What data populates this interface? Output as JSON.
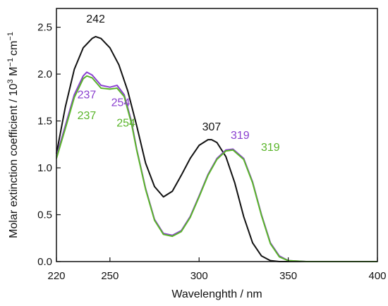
{
  "chart_data": {
    "type": "line",
    "title": "",
    "xlabel": "Wavelenghth / nm",
    "ylabel_parts": {
      "prefix": "Molar extinction coefficient / 10",
      "exp1": "3",
      "mid": " M",
      "exp2": "−1",
      "mid2": "cm",
      "exp3": "−1"
    },
    "xlim": [
      220,
      400
    ],
    "ylim": [
      0,
      2.7
    ],
    "x_ticks": [
      {
        "value": 220,
        "label": "220"
      },
      {
        "value": 250,
        "label": "250"
      },
      {
        "value": 300,
        "label": "300"
      },
      {
        "value": 350,
        "label": "350"
      },
      {
        "value": 400,
        "label": "400"
      }
    ],
    "y_ticks": [
      {
        "value": 0.0,
        "label": "0.0"
      },
      {
        "value": 0.5,
        "label": "0.5"
      },
      {
        "value": 1.0,
        "label": "1.0"
      },
      {
        "value": 1.5,
        "label": "1.5"
      },
      {
        "value": 2.0,
        "label": "2.0"
      },
      {
        "value": 2.5,
        "label": "2.5"
      }
    ],
    "grid": false,
    "legend": "none",
    "series": [
      {
        "color": "#111111",
        "x": [
          220,
          225,
          230,
          235,
          240,
          242,
          245,
          250,
          255,
          260,
          265,
          270,
          275,
          280,
          285,
          290,
          295,
          300,
          305,
          307,
          310,
          315,
          320,
          325,
          330,
          335,
          340,
          345,
          350,
          360,
          380,
          400
        ],
        "y": [
          1.15,
          1.65,
          2.05,
          2.28,
          2.38,
          2.4,
          2.38,
          2.28,
          2.1,
          1.82,
          1.45,
          1.05,
          0.8,
          0.69,
          0.75,
          0.92,
          1.1,
          1.24,
          1.3,
          1.3,
          1.27,
          1.12,
          0.84,
          0.48,
          0.2,
          0.06,
          0.01,
          0.0,
          0.0,
          0.0,
          0.0,
          0.0
        ]
      },
      {
        "color": "#8a3fcf",
        "x": [
          220,
          225,
          230,
          235,
          237,
          240,
          245,
          250,
          254,
          258,
          262,
          265,
          270,
          275,
          280,
          285,
          290,
          295,
          300,
          305,
          310,
          315,
          319,
          325,
          330,
          335,
          340,
          345,
          350,
          360,
          380,
          400
        ],
        "y": [
          1.12,
          1.45,
          1.78,
          1.98,
          2.02,
          1.99,
          1.88,
          1.86,
          1.88,
          1.78,
          1.5,
          1.2,
          0.78,
          0.45,
          0.3,
          0.28,
          0.33,
          0.48,
          0.7,
          0.93,
          1.1,
          1.19,
          1.2,
          1.1,
          0.85,
          0.5,
          0.2,
          0.06,
          0.01,
          0.0,
          0.0,
          0.0
        ]
      },
      {
        "color": "#5ab52a",
        "x": [
          220,
          225,
          230,
          235,
          237,
          240,
          245,
          250,
          254,
          258,
          262,
          265,
          270,
          275,
          280,
          285,
          290,
          295,
          300,
          305,
          310,
          315,
          319,
          325,
          330,
          335,
          340,
          345,
          350,
          360,
          380,
          400
        ],
        "y": [
          1.1,
          1.42,
          1.75,
          1.95,
          1.98,
          1.96,
          1.85,
          1.84,
          1.85,
          1.76,
          1.48,
          1.19,
          0.77,
          0.44,
          0.29,
          0.27,
          0.32,
          0.47,
          0.69,
          0.92,
          1.09,
          1.18,
          1.19,
          1.09,
          0.84,
          0.49,
          0.19,
          0.05,
          0.01,
          0.0,
          0.0,
          0.0
        ]
      }
    ],
    "peak_labels": [
      {
        "text": "242",
        "x": 242,
        "y": 2.55,
        "color": "#111111"
      },
      {
        "text": "307",
        "x": 307,
        "y": 1.4,
        "color": "#111111"
      },
      {
        "text": "237",
        "x": 237,
        "y": 1.74,
        "color": "#8a3fcf"
      },
      {
        "text": "254",
        "x": 256,
        "y": 1.66,
        "color": "#8a3fcf"
      },
      {
        "text": "237",
        "x": 237,
        "y": 1.52,
        "color": "#5ab52a"
      },
      {
        "text": "254",
        "x": 259,
        "y": 1.44,
        "color": "#5ab52a"
      },
      {
        "text": "319",
        "x": 323,
        "y": 1.31,
        "color": "#8a3fcf"
      },
      {
        "text": "319",
        "x": 340,
        "y": 1.18,
        "color": "#5ab52a"
      }
    ]
  }
}
